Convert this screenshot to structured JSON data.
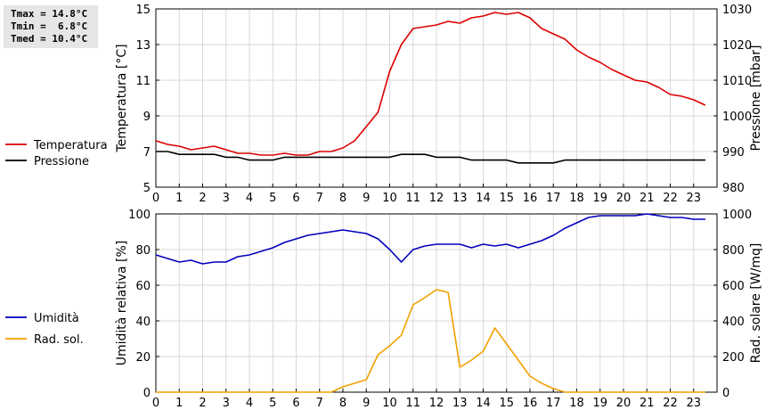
{
  "stats": {
    "tmax": "Tmax = 14.8°C",
    "tmin": "Tmin =  6.8°C",
    "tmed": "Tmed = 10.4°C"
  },
  "chart_data": [
    {
      "type": "line",
      "x_ticks": [
        "0",
        "1",
        "2",
        "3",
        "4",
        "5",
        "6",
        "7",
        "8",
        "9",
        "10",
        "11",
        "12",
        "13",
        "14",
        "15",
        "16",
        "17",
        "18",
        "19",
        "20",
        "21",
        "22",
        "23"
      ],
      "x": [
        0,
        0.5,
        1,
        1.5,
        2,
        2.5,
        3,
        3.5,
        4,
        4.5,
        5,
        5.5,
        6,
        6.5,
        7,
        7.5,
        8,
        8.5,
        9,
        9.5,
        10,
        10.5,
        11,
        11.5,
        12,
        12.5,
        13,
        13.5,
        14,
        14.5,
        15,
        15.5,
        16,
        16.5,
        17,
        17.5,
        18,
        18.5,
        19,
        19.5,
        20,
        20.5,
        21,
        21.5,
        22,
        22.5,
        23,
        23.5
      ],
      "xlim": [
        0,
        24
      ],
      "ylabel": "Temperatura [°C]",
      "ylim": [
        5,
        15
      ],
      "y_ticks": [
        "5",
        "7",
        "9",
        "11",
        "13",
        "15"
      ],
      "ylabel_right": "Pressione [mbar]",
      "ylim_right": [
        980,
        1030
      ],
      "y_ticks_right": [
        "980",
        "990",
        "1000",
        "1010",
        "1020",
        "1030"
      ],
      "grid": true,
      "legend_position": "left",
      "series": [
        {
          "name": "Temperatura",
          "axis": "left",
          "color": "#dd0000",
          "values": [
            7.6,
            7.4,
            7.3,
            7.1,
            7.2,
            7.3,
            7.1,
            6.9,
            6.9,
            6.8,
            6.8,
            6.9,
            6.8,
            6.8,
            7.0,
            7.0,
            7.2,
            7.6,
            8.4,
            9.2,
            11.5,
            13.0,
            13.9,
            14.0,
            14.1,
            14.3,
            14.2,
            14.5,
            14.6,
            14.8,
            14.7,
            14.8,
            14.5,
            13.9,
            13.6,
            13.3,
            12.7,
            12.3,
            12.0,
            11.6,
            11.3,
            11.0,
            10.9,
            10.6,
            10.2,
            10.1,
            9.9,
            9.6
          ]
        },
        {
          "name": "Pressione",
          "axis": "right",
          "color": "#000000",
          "values": [
            990,
            990,
            989.2,
            989.2,
            989.2,
            989.2,
            988.4,
            988.4,
            987.6,
            987.6,
            987.6,
            988.4,
            988.4,
            988.4,
            988.4,
            988.4,
            988.4,
            988.4,
            988.4,
            988.4,
            988.4,
            989.2,
            989.2,
            989.2,
            988.4,
            988.4,
            988.4,
            987.6,
            987.6,
            987.6,
            987.6,
            986.8,
            986.8,
            986.8,
            986.8,
            987.6,
            987.6,
            987.6,
            987.6,
            987.6,
            987.6,
            987.6,
            987.6,
            987.6,
            987.6,
            987.6,
            987.6,
            987.6
          ]
        }
      ]
    },
    {
      "type": "line",
      "x_ticks": [
        "0",
        "1",
        "2",
        "3",
        "4",
        "5",
        "6",
        "7",
        "8",
        "9",
        "10",
        "11",
        "12",
        "13",
        "14",
        "15",
        "16",
        "17",
        "18",
        "19",
        "20",
        "21",
        "22",
        "23"
      ],
      "x": [
        0,
        0.5,
        1,
        1.5,
        2,
        2.5,
        3,
        3.5,
        4,
        4.5,
        5,
        5.5,
        6,
        6.5,
        7,
        7.5,
        8,
        8.5,
        9,
        9.5,
        10,
        10.5,
        11,
        11.5,
        12,
        12.5,
        13,
        13.5,
        14,
        14.5,
        15,
        15.5,
        16,
        16.5,
        17,
        17.5,
        18,
        18.5,
        19,
        19.5,
        20,
        20.5,
        21,
        21.5,
        22,
        22.5,
        23,
        23.5
      ],
      "xlim": [
        0,
        24
      ],
      "ylabel": "Umidità relativa [%]",
      "ylim": [
        0,
        100
      ],
      "y_ticks": [
        "0",
        "20",
        "40",
        "60",
        "80",
        "100"
      ],
      "ylabel_right": "Rad. solare [W/mq]",
      "ylim_right": [
        0,
        1000
      ],
      "y_ticks_right": [
        "0",
        "200",
        "400",
        "600",
        "800",
        "1000"
      ],
      "grid": true,
      "legend_position": "left",
      "series": [
        {
          "name": "Umidità",
          "axis": "left",
          "color": "#0000bb",
          "values": [
            77,
            75,
            73,
            74,
            72,
            73,
            73,
            76,
            77,
            79,
            81,
            84,
            86,
            88,
            89,
            90,
            91,
            90,
            89,
            86,
            80,
            73,
            80,
            82,
            83,
            83,
            83,
            81,
            83,
            82,
            83,
            81,
            83,
            85,
            88,
            92,
            95,
            98,
            99,
            99,
            99,
            99,
            100,
            99,
            98,
            98,
            97,
            97
          ]
        },
        {
          "name": "Rad. sol.",
          "axis": "right",
          "color": "#f0a000",
          "values": [
            0,
            0,
            0,
            0,
            0,
            0,
            0,
            0,
            0,
            0,
            0,
            0,
            0,
            0,
            0,
            0,
            30,
            50,
            70,
            210,
            260,
            320,
            490,
            530,
            575,
            560,
            140,
            180,
            230,
            360,
            270,
            180,
            90,
            50,
            20,
            0,
            0,
            0,
            0,
            0,
            0,
            0,
            0,
            0,
            0,
            0,
            0,
            0
          ]
        }
      ]
    }
  ]
}
